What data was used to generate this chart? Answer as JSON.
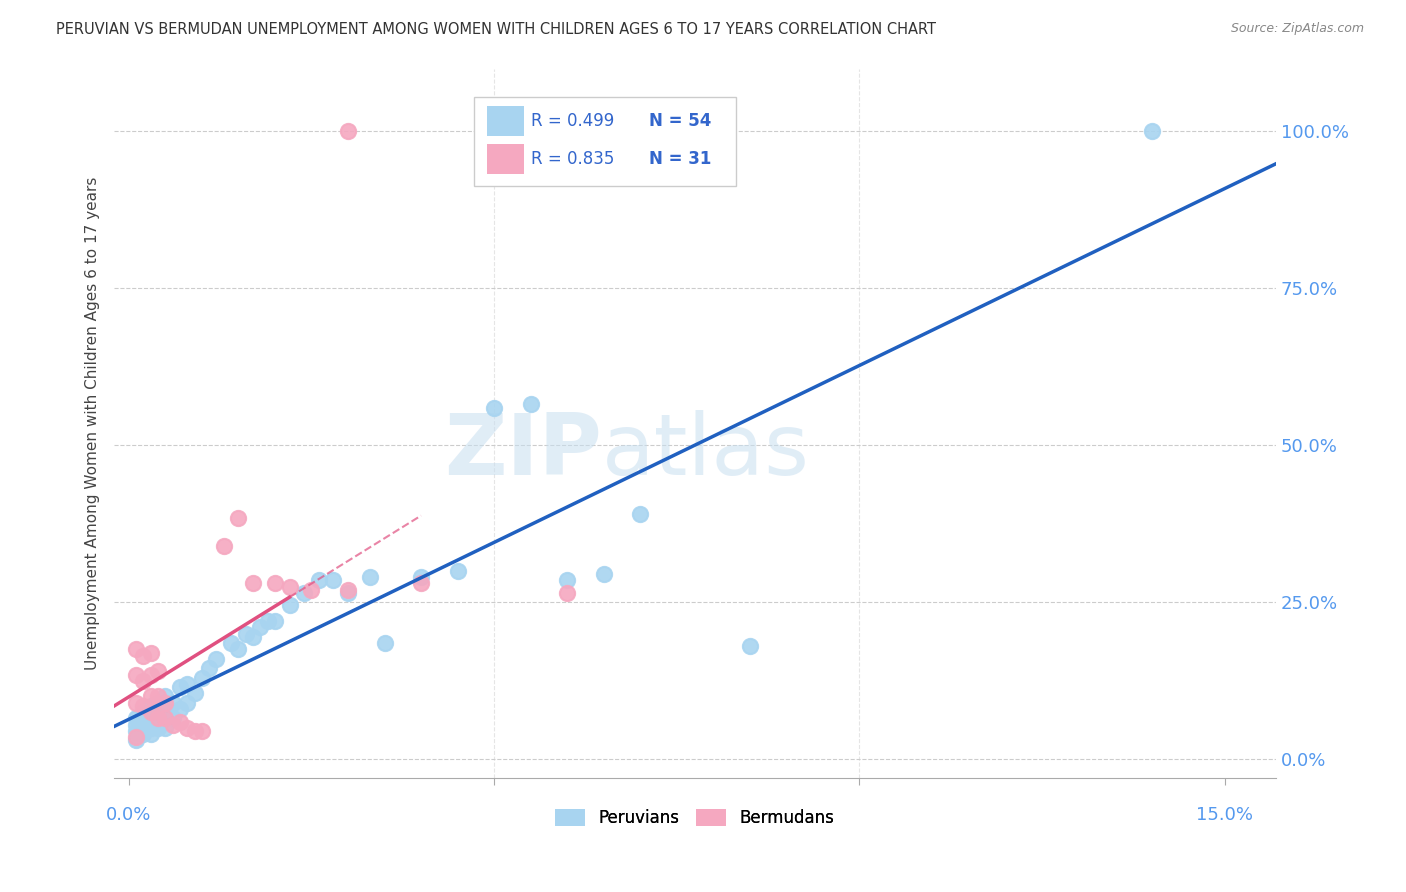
{
  "title": "PERUVIAN VS BERMUDAN UNEMPLOYMENT AMONG WOMEN WITH CHILDREN AGES 6 TO 17 YEARS CORRELATION CHART",
  "source": "Source: ZipAtlas.com",
  "ylabel": "Unemployment Among Women with Children Ages 6 to 17 years",
  "xlabel_ticks": [
    "0.0%",
    "15.0%"
  ],
  "xlabel_vals": [
    0.0,
    0.15
  ],
  "ylabel_ticks": [
    "100.0%",
    "75.0%",
    "50.0%",
    "25.0%",
    "0.0%"
  ],
  "ylabel_vals": [
    1.0,
    0.75,
    0.5,
    0.25,
    0.0
  ],
  "xlim": [
    -0.002,
    0.157
  ],
  "ylim": [
    -0.03,
    1.1
  ],
  "peruvian_color": "#A8D4F0",
  "bermudan_color": "#F5A8C0",
  "trendline_peruvian_color": "#2060C0",
  "trendline_bermudan_color": "#E05080",
  "trendline_bermudan_dashed": true,
  "watermark_zip": "ZIP",
  "watermark_atlas": "atlas",
  "legend_R_peruvian": "R = 0.499",
  "legend_N_peruvian": "N = 54",
  "legend_R_bermudan": "R = 0.835",
  "legend_N_bermudan": "N = 31",
  "peruvian_x": [
    0.001,
    0.001,
    0.001,
    0.001,
    0.002,
    0.002,
    0.002,
    0.002,
    0.003,
    0.003,
    0.003,
    0.003,
    0.003,
    0.004,
    0.004,
    0.004,
    0.004,
    0.005,
    0.005,
    0.005,
    0.005,
    0.006,
    0.006,
    0.007,
    0.007,
    0.008,
    0.008,
    0.009,
    0.01,
    0.011,
    0.012,
    0.014,
    0.015,
    0.016,
    0.017,
    0.018,
    0.019,
    0.02,
    0.022,
    0.024,
    0.026,
    0.028,
    0.03,
    0.033,
    0.035,
    0.04,
    0.045,
    0.05,
    0.055,
    0.06,
    0.065,
    0.07,
    0.085,
    0.14
  ],
  "peruvian_y": [
    0.03,
    0.045,
    0.055,
    0.065,
    0.04,
    0.055,
    0.06,
    0.075,
    0.04,
    0.05,
    0.06,
    0.07,
    0.085,
    0.05,
    0.06,
    0.075,
    0.09,
    0.05,
    0.065,
    0.08,
    0.1,
    0.065,
    0.09,
    0.08,
    0.115,
    0.09,
    0.12,
    0.105,
    0.13,
    0.145,
    0.16,
    0.185,
    0.175,
    0.2,
    0.195,
    0.21,
    0.22,
    0.22,
    0.245,
    0.265,
    0.285,
    0.285,
    0.265,
    0.29,
    0.185,
    0.29,
    0.3,
    0.56,
    0.565,
    0.285,
    0.295,
    0.39,
    0.18,
    1.0
  ],
  "bermudan_x": [
    0.001,
    0.001,
    0.001,
    0.001,
    0.002,
    0.002,
    0.002,
    0.003,
    0.003,
    0.003,
    0.003,
    0.004,
    0.004,
    0.004,
    0.005,
    0.005,
    0.006,
    0.007,
    0.008,
    0.009,
    0.01,
    0.013,
    0.015,
    0.017,
    0.02,
    0.022,
    0.025,
    0.03,
    0.04,
    0.06,
    0.03
  ],
  "bermudan_y": [
    0.035,
    0.09,
    0.135,
    0.175,
    0.085,
    0.125,
    0.165,
    0.075,
    0.1,
    0.135,
    0.17,
    0.065,
    0.1,
    0.14,
    0.065,
    0.09,
    0.055,
    0.06,
    0.05,
    0.045,
    0.045,
    0.34,
    0.385,
    0.28,
    0.28,
    0.275,
    0.27,
    0.27,
    0.28,
    0.265,
    1.0
  ],
  "background_color": "#FFFFFF",
  "grid_color": "#CCCCCC",
  "tick_color": "#5599EE",
  "label_color": "#444444",
  "legend_box_color": "#EEEEEE",
  "legend_box_edge": "#CCCCCC"
}
